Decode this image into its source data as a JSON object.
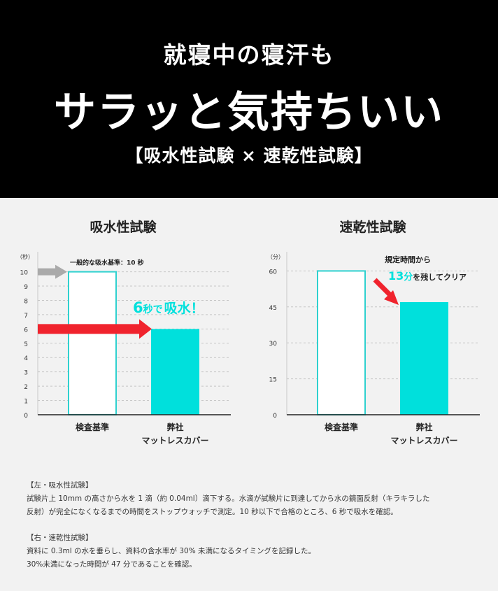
{
  "header": {
    "line1": "就寝中の寝汗も",
    "line2": "サラッと気持ちいい",
    "line3": "【吸水性試験 × 速乾性試験】"
  },
  "colors": {
    "accent": "#00e0dc",
    "outline_bar": "#2fd1cf",
    "arrow_red": "#f0232d",
    "arrow_gray": "#aaaaaa",
    "header_bg": "#000000"
  },
  "chart_data": [
    {
      "type": "bar",
      "title": "吸水性試験",
      "unit_label": "（秒）",
      "categories": [
        "検査基準",
        "弊社\nマットレスカバー"
      ],
      "values": [
        10,
        6
      ],
      "bar_styles": [
        "outline",
        "filled"
      ],
      "yticks": [
        0,
        1,
        2,
        3,
        4,
        5,
        6,
        7,
        8,
        9,
        10
      ],
      "ylim": [
        0,
        11.4
      ],
      "grid": true,
      "annotations": {
        "reference": "一般的な吸水基準：10 秒",
        "callout_number": "6",
        "callout_text": "秒で",
        "callout_suffix": "吸水！"
      }
    },
    {
      "type": "bar",
      "title": "速乾性試験",
      "unit_label": "（分）",
      "categories": [
        "検査基準",
        "弊社\nマットレスカバー"
      ],
      "values": [
        60,
        47
      ],
      "bar_styles": [
        "outline",
        "filled"
      ],
      "yticks": [
        0,
        15,
        30,
        45,
        60
      ],
      "ylim": [
        0,
        68
      ],
      "grid": true,
      "annotations": {
        "line1": "規定時間から",
        "callout_number": "13",
        "callout_unit": "分",
        "callout_text": "を残してクリア"
      }
    }
  ],
  "notes": {
    "left_heading": "【左・吸水性試験】",
    "left_line1": "試験片上 10mm の高さから水を 1 滴（約 0.04ml）滴下する。水滴が試験片に到達してから水の鏡面反射（キラキラした",
    "left_line2": "反射）が完全になくなるまでの時間をストップウォッチで測定。10 秒以下で合格のところ、6 秒で吸水を確認。",
    "right_heading": "【右・速乾性試験】",
    "right_line1": "資料に 0.3ml の水を垂らし、資料の含水率が 30% 未満になるタイミングを記録した。",
    "right_line2": "30%未満になった時間が 47 分であることを確認。"
  }
}
